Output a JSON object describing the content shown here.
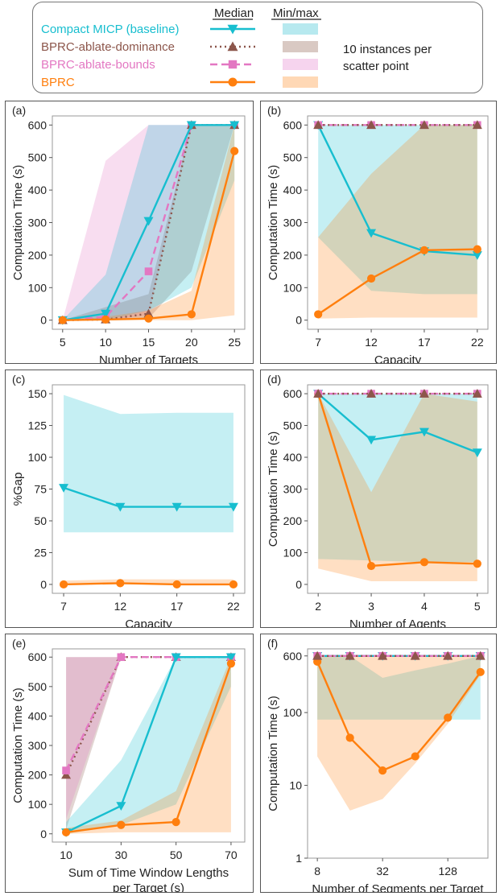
{
  "legend": {
    "header_median": "Median",
    "header_minmax": "Min/max",
    "note_line1": "10 instances per",
    "note_line2": "scatter point",
    "entries": [
      {
        "key": "micp",
        "label": "Compact MICP (baseline)",
        "color": "#17becf",
        "marker": "triangle-down",
        "line": "solid",
        "band": "#b7e9ef"
      },
      {
        "key": "dom",
        "label": "BPRC-ablate-dominance",
        "color": "#8c564b",
        "marker": "triangle-up",
        "line": "dotted",
        "band": "#d9c9c3"
      },
      {
        "key": "bnd",
        "label": "BPRC-ablate-bounds",
        "color": "#e377c2",
        "marker": "square",
        "line": "dashed",
        "band": "#f6d4ee"
      },
      {
        "key": "bprc",
        "label": "BPRC",
        "color": "#ff7f0e",
        "marker": "circle",
        "line": "solid",
        "band": "#ffd8b5"
      }
    ]
  },
  "chart_data": [
    {
      "id": "a",
      "panel_label": "(a)",
      "type": "line",
      "xlabel": [
        "Number of Targets"
      ],
      "ylabel": "Computation Time (s)",
      "x": [
        5,
        10,
        15,
        20,
        25
      ],
      "xticks": [
        "5",
        "10",
        "15",
        "20",
        "25"
      ],
      "xlim": [
        3.8,
        26.2
      ],
      "ylim": [
        -28,
        628
      ],
      "yscale": "linear",
      "yticks": [
        0,
        100,
        200,
        300,
        400,
        500,
        600
      ],
      "series": [
        {
          "key": "bnd",
          "values": [
            0,
            10,
            150,
            600,
            600
          ],
          "min": [
            0,
            0,
            15,
            600,
            600
          ],
          "max": [
            0,
            490,
            600,
            600,
            600
          ]
        },
        {
          "key": "dom",
          "values": [
            0,
            2,
            20,
            600,
            600
          ],
          "min": [
            0,
            0,
            5,
            150,
            600
          ],
          "max": [
            0,
            40,
            80,
            600,
            600
          ]
        },
        {
          "key": "micp",
          "values": [
            0,
            20,
            305,
            600,
            600
          ],
          "min": [
            0,
            0,
            30,
            100,
            430
          ],
          "max": [
            0,
            140,
            600,
            600,
            600
          ]
        },
        {
          "key": "bprc",
          "values": [
            0,
            2,
            5,
            18,
            520
          ],
          "min": [
            0,
            0,
            0,
            0,
            15
          ],
          "max": [
            0,
            10,
            30,
            90,
            600
          ]
        }
      ]
    },
    {
      "id": "b",
      "panel_label": "(b)",
      "type": "line",
      "xlabel": [
        "Capacity"
      ],
      "ylabel": "Computation Time (s)",
      "x": [
        7,
        12,
        17,
        22
      ],
      "xticks": [
        "7",
        "12",
        "17",
        "22"
      ],
      "xlim": [
        6,
        23
      ],
      "ylim": [
        -28,
        628
      ],
      "yscale": "linear",
      "yticks": [
        0,
        100,
        200,
        300,
        400,
        500,
        600
      ],
      "series": [
        {
          "key": "micp",
          "values": [
            600,
            268,
            212,
            200
          ],
          "min": [
            255,
            90,
            80,
            80
          ],
          "max": [
            600,
            600,
            600,
            600
          ]
        },
        {
          "key": "bprc",
          "values": [
            18,
            128,
            215,
            218
          ],
          "min": [
            5,
            8,
            8,
            8
          ],
          "max": [
            255,
            450,
            600,
            600
          ]
        },
        {
          "key": "bnd",
          "values": [
            600,
            600,
            600,
            600
          ],
          "min": [
            600,
            600,
            600,
            600
          ],
          "max": [
            600,
            600,
            600,
            600
          ]
        },
        {
          "key": "dom",
          "values": [
            600,
            600,
            600,
            600
          ],
          "min": [
            600,
            600,
            600,
            600
          ],
          "max": [
            600,
            600,
            600,
            600
          ]
        }
      ]
    },
    {
      "id": "c",
      "panel_label": "(c)",
      "type": "line",
      "xlabel": [
        "Capacity"
      ],
      "ylabel": "%Gap",
      "x": [
        7,
        12,
        17,
        22
      ],
      "xticks": [
        "7",
        "12",
        "17",
        "22"
      ],
      "xlim": [
        6,
        23
      ],
      "ylim": [
        -7,
        157
      ],
      "yscale": "linear",
      "yticks": [
        0,
        25,
        50,
        75,
        100,
        125,
        150
      ],
      "series": [
        {
          "key": "micp",
          "values": [
            76,
            61,
            61,
            61
          ],
          "min": [
            41,
            41,
            41,
            41
          ],
          "max": [
            149,
            134,
            135,
            135
          ]
        },
        {
          "key": "bprc",
          "values": [
            0,
            1,
            0,
            0
          ],
          "min": [
            0,
            0,
            0,
            0
          ],
          "max": [
            3,
            4,
            4,
            4
          ]
        }
      ]
    },
    {
      "id": "d",
      "panel_label": "(d)",
      "type": "line",
      "xlabel": [
        "Number of Agents"
      ],
      "ylabel": "Computation Time (s)",
      "x": [
        2,
        3,
        4,
        5
      ],
      "xticks": [
        "2",
        "3",
        "4",
        "5"
      ],
      "xlim": [
        1.8,
        5.2
      ],
      "ylim": [
        -28,
        628
      ],
      "yscale": "linear",
      "yticks": [
        0,
        100,
        200,
        300,
        400,
        500,
        600
      ],
      "series": [
        {
          "key": "micp",
          "values": [
            600,
            455,
            480,
            415
          ],
          "min": [
            80,
            75,
            70,
            70
          ],
          "max": [
            600,
            600,
            600,
            600
          ]
        },
        {
          "key": "bprc",
          "values": [
            600,
            58,
            70,
            65
          ],
          "min": [
            50,
            10,
            10,
            10
          ],
          "max": [
            600,
            290,
            600,
            575
          ]
        },
        {
          "key": "bnd",
          "values": [
            600,
            600,
            600,
            600
          ],
          "min": [
            600,
            600,
            600,
            600
          ],
          "max": [
            600,
            600,
            600,
            600
          ]
        },
        {
          "key": "dom",
          "values": [
            600,
            600,
            600,
            600
          ],
          "min": [
            600,
            600,
            600,
            600
          ],
          "max": [
            600,
            600,
            600,
            600
          ]
        }
      ]
    },
    {
      "id": "e",
      "panel_label": "(e)",
      "type": "line",
      "xlabel": [
        "Sum of Time Window Lengths",
        "per Target (s)"
      ],
      "ylabel": "Computation Time (s)",
      "x": [
        10,
        30,
        50,
        70
      ],
      "xticks": [
        "10",
        "30",
        "50",
        "70"
      ],
      "xlim": [
        5,
        75
      ],
      "ylim": [
        -28,
        628
      ],
      "yscale": "linear",
      "yticks": [
        0,
        100,
        200,
        300,
        400,
        500,
        600
      ],
      "series": [
        {
          "key": "dom",
          "values": [
            200,
            600,
            600,
            600
          ],
          "min": [
            15,
            600,
            600,
            600
          ],
          "max": [
            600,
            600,
            600,
            600
          ]
        },
        {
          "key": "bnd",
          "values": [
            215,
            600,
            600,
            600
          ],
          "min": [
            50,
            600,
            600,
            600
          ],
          "max": [
            600,
            600,
            600,
            600
          ]
        },
        {
          "key": "micp",
          "values": [
            5,
            95,
            600,
            600
          ],
          "min": [
            0,
            30,
            100,
            500
          ],
          "max": [
            40,
            250,
            600,
            600
          ]
        },
        {
          "key": "bprc",
          "values": [
            5,
            30,
            40,
            578
          ],
          "min": [
            0,
            5,
            5,
            5
          ],
          "max": [
            20,
            45,
            145,
            600
          ]
        }
      ]
    },
    {
      "id": "f",
      "panel_label": "(f)",
      "type": "line",
      "xlabel": [
        "Number of Segments per Target"
      ],
      "ylabel": "Computation Time (s)",
      "x": [
        8,
        16,
        32,
        64,
        128,
        256
      ],
      "xticks": [
        "8",
        "32",
        "128"
      ],
      "xtick_values": [
        8,
        32,
        128
      ],
      "xscale": "log2",
      "xlim": [
        6.5,
        300
      ],
      "ylim": [
        1,
        750
      ],
      "yscale": "log",
      "yticks": [
        1,
        10,
        100,
        600
      ],
      "series": [
        {
          "key": "micp",
          "values": [
            600,
            600,
            600,
            600,
            600,
            600
          ],
          "min": [
            80,
            80,
            80,
            80,
            80,
            80
          ],
          "max": [
            600,
            600,
            300,
            380,
            470,
            600
          ]
        },
        {
          "key": "bprc",
          "values": [
            500,
            45,
            16,
            25,
            85,
            360
          ],
          "min": [
            25,
            4.5,
            6.5,
            20,
            70,
            330
          ],
          "max": [
            600,
            600,
            600,
            600,
            600,
            600
          ]
        },
        {
          "key": "bnd",
          "values": [
            600,
            600,
            600,
            600,
            600,
            600
          ],
          "min": [
            600,
            600,
            600,
            600,
            600,
            600
          ],
          "max": [
            600,
            600,
            600,
            600,
            600,
            600
          ]
        },
        {
          "key": "dom",
          "values": [
            600,
            600,
            600,
            600,
            600,
            600
          ],
          "min": [
            600,
            600,
            600,
            600,
            600,
            600
          ],
          "max": [
            600,
            600,
            600,
            600,
            600,
            600
          ]
        }
      ]
    }
  ]
}
